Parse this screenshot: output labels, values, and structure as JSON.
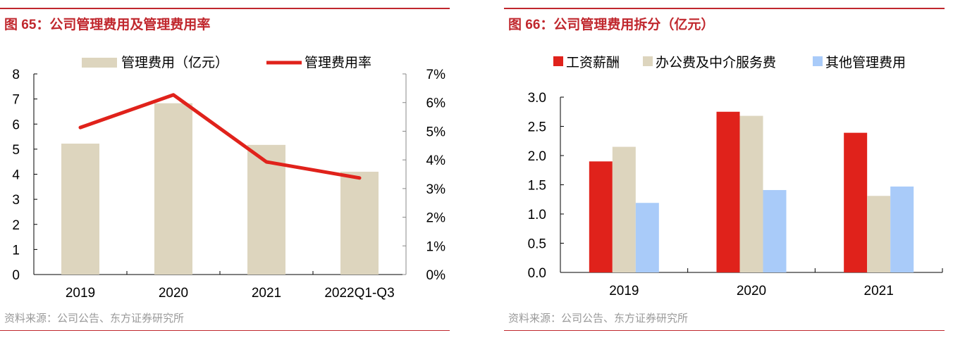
{
  "chart_data": [
    {
      "type": "bar+line",
      "title": "图 65：公司管理费用及管理费用率",
      "categories": [
        "2019",
        "2020",
        "2021",
        "2022Q1-Q3"
      ],
      "series": [
        {
          "name": "管理费用（亿元）",
          "type": "bar",
          "axis": "left",
          "color": "#ddd5be",
          "values": [
            5.22,
            6.83,
            5.17,
            4.1
          ]
        },
        {
          "name": "管理费用率",
          "type": "line",
          "axis": "right",
          "color": "#e0221b",
          "values": [
            5.13,
            6.27,
            3.93,
            3.37
          ]
        }
      ],
      "ylim": [
        0,
        8
      ],
      "yticks": [
        "0",
        "1",
        "2",
        "3",
        "4",
        "5",
        "6",
        "7",
        "8"
      ],
      "y2lim": [
        0,
        7
      ],
      "y2ticks": [
        "0%",
        "1%",
        "2%",
        "3%",
        "4%",
        "5%",
        "6%",
        "7%"
      ],
      "legend": "top",
      "grid": false,
      "source": "资料来源：公司公告、东方证券研究所"
    },
    {
      "type": "bar",
      "title": "图 66：公司管理费用拆分（亿元）",
      "categories": [
        "2019",
        "2020",
        "2021"
      ],
      "series": [
        {
          "name": "工资薪酬",
          "color": "#e0221b",
          "values": [
            1.9,
            2.75,
            2.39
          ]
        },
        {
          "name": "办公费及中介服务费",
          "color": "#ddd5be",
          "values": [
            2.15,
            2.68,
            1.31
          ]
        },
        {
          "name": "其他管理费用",
          "color": "#a9cbf9",
          "values": [
            1.19,
            1.41,
            1.47
          ]
        }
      ],
      "ylim": [
        0,
        3
      ],
      "yticks": [
        "0.0",
        "0.5",
        "1.0",
        "1.5",
        "2.0",
        "2.5",
        "3.0"
      ],
      "legend": "top",
      "grid": false,
      "source": "资料来源：公司公告、东方证券研究所"
    }
  ]
}
